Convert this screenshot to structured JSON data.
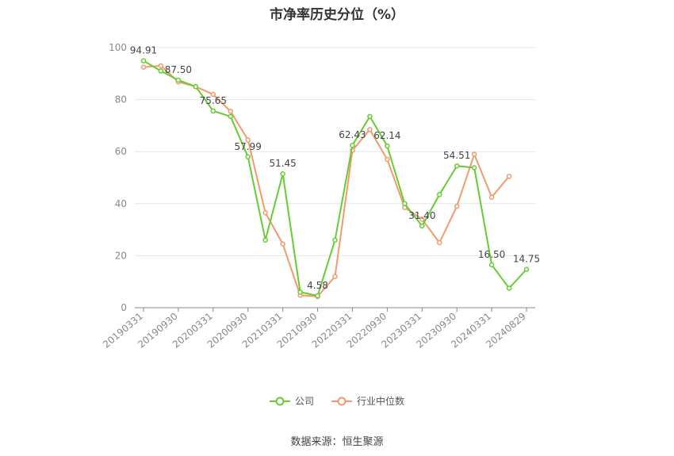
{
  "chart_data": {
    "type": "line",
    "title": "市净率历史分位（%）",
    "xlabel": "",
    "ylabel": "",
    "ylim": [
      0,
      100
    ],
    "yticks": [
      0,
      20,
      40,
      60,
      80,
      100
    ],
    "x_tick_labels": [
      "20190331",
      "20190930",
      "20200331",
      "20200930",
      "20210331",
      "20210930",
      "20220331",
      "20220930",
      "20230331",
      "20230930",
      "20240331",
      "20240829"
    ],
    "x_tick_positions": [
      0,
      2,
      4,
      6,
      8,
      10,
      12,
      14,
      16,
      18,
      20,
      22
    ],
    "grid": true,
    "legend_position": "bottom-center",
    "series": [
      {
        "name": "公司",
        "color": "#66cc33",
        "values": [
          94.91,
          91.0,
          87.5,
          85.0,
          75.65,
          73.5,
          57.99,
          26.0,
          51.45,
          6.0,
          4.58,
          26.0,
          62.43,
          73.5,
          62.14,
          40.0,
          31.4,
          43.5,
          54.51,
          53.8,
          16.5,
          7.5,
          14.75
        ],
        "labels": {
          "0": "94.91",
          "2": "87.50",
          "4": "75.65",
          "6": "57.99",
          "8": "51.45",
          "10": "4.58",
          "12": "62.43",
          "14": "62.14",
          "16": "31.40",
          "18": "54.51",
          "20": "16.50",
          "22": "14.75"
        }
      },
      {
        "name": "行业中位数",
        "color": "#f29a6e",
        "values": [
          92.5,
          93.0,
          86.8,
          85.0,
          82.0,
          75.5,
          64.5,
          36.5,
          24.5,
          4.8,
          4.3,
          12.0,
          60.5,
          68.5,
          57.0,
          38.5,
          34.0,
          25.0,
          39.0,
          59.0,
          42.5,
          50.5,
          null
        ]
      }
    ],
    "source": "数据来源：恒生聚源"
  }
}
